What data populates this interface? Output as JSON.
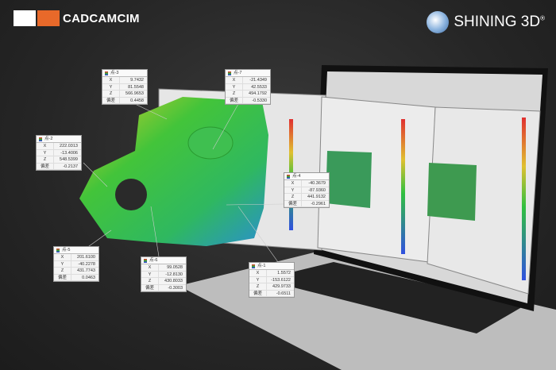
{
  "logos": {
    "left": "CADCAMCIM",
    "right": "SHINING 3D",
    "right_reg": "®"
  },
  "colors": {
    "accent_orange": "#e8692a",
    "deviation_green": "#3ec43a",
    "deviation_yellow": "#d6d62a",
    "deviation_blue": "#2a7fd6"
  },
  "axis_labels": {
    "x": "X",
    "y": "Y",
    "z": "Z",
    "dev": "偏差"
  },
  "callouts": [
    {
      "title": "点-3",
      "x": "9.7432",
      "y": "81.5548",
      "z": "566.9653",
      "dev": "0.4458"
    },
    {
      "title": "点-7",
      "x": "-21.4349",
      "y": "42.5533",
      "z": "494.1792",
      "dev": "-0.5330"
    },
    {
      "title": "点-2",
      "x": "222.0313",
      "y": "-13.4006",
      "z": "548.5399",
      "dev": "-0.2137"
    },
    {
      "title": "点-4",
      "x": "-40.3679",
      "y": "-87.9360",
      "z": "441.9132",
      "dev": "-0.2961"
    },
    {
      "title": "点-5",
      "x": "201.6100",
      "y": "-40.2278",
      "z": "431.7743",
      "dev": "0.0463"
    },
    {
      "title": "点-6",
      "x": "99.0528",
      "y": "-12.8130",
      "z": "430.8033",
      "dev": "-0.3003"
    },
    {
      "title": "点-1",
      "x": "1.5572",
      "y": "-153.6122",
      "z": "429.9733",
      "dev": "-0.6511"
    }
  ]
}
